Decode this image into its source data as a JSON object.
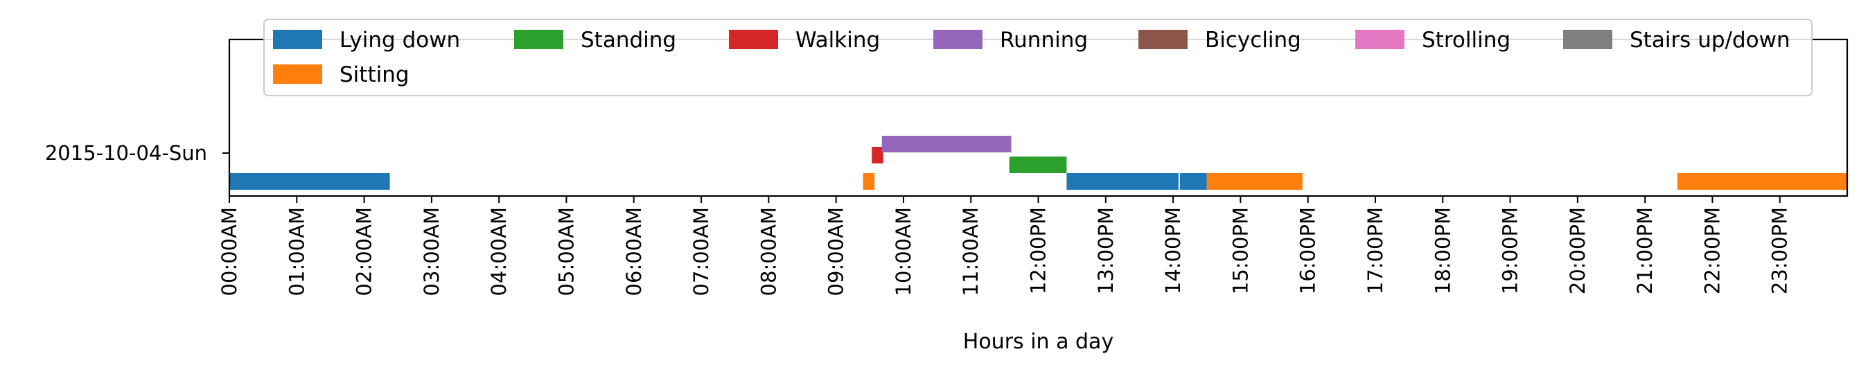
{
  "chart_data": {
    "type": "timeline",
    "xlabel": "Hours in a day",
    "xlim_hours": [
      0,
      24
    ],
    "x_tick_labels": [
      "00:00AM",
      "01:00AM",
      "02:00AM",
      "03:00AM",
      "04:00AM",
      "05:00AM",
      "06:00AM",
      "07:00AM",
      "08:00AM",
      "09:00AM",
      "10:00AM",
      "11:00AM",
      "12:00PM",
      "13:00PM",
      "14:00PM",
      "15:00PM",
      "16:00PM",
      "17:00PM",
      "18:00PM",
      "19:00PM",
      "20:00PM",
      "21:00PM",
      "22:00PM",
      "23:00PM"
    ],
    "y_tick_labels": [
      "2015-10-04-Sun"
    ],
    "legend_placement": "top",
    "legend": [
      {
        "label": "Lying down",
        "color": "#1f77b4"
      },
      {
        "label": "Standing",
        "color": "#2ca02c"
      },
      {
        "label": "Walking",
        "color": "#d62728"
      },
      {
        "label": "Running",
        "color": "#9467bd"
      },
      {
        "label": "Bicycling",
        "color": "#8c564b"
      },
      {
        "label": "Strolling",
        "color": "#e377c2"
      },
      {
        "label": "Stairs up/down",
        "color": "#7f7f7f"
      },
      {
        "label": "Sitting",
        "color": "#ff7f0e"
      }
    ],
    "series": [
      {
        "name": "Lying down",
        "color": "#1f77b4",
        "level": 0,
        "intervals": [
          [
            0.0,
            2.38
          ],
          [
            12.42,
            14.08
          ],
          [
            14.1,
            14.5
          ]
        ]
      },
      {
        "name": "Sitting",
        "color": "#ff7f0e",
        "level": 0,
        "intervals": [
          [
            9.4,
            9.57
          ],
          [
            14.5,
            15.92
          ],
          [
            21.48,
            24.0
          ]
        ]
      },
      {
        "name": "Standing",
        "color": "#2ca02c",
        "level": 1,
        "intervals": [
          [
            11.57,
            12.42
          ]
        ]
      },
      {
        "name": "Walking",
        "color": "#d62728",
        "level": 2,
        "intervals": [
          [
            9.53,
            9.7
          ]
        ]
      },
      {
        "name": "Running",
        "color": "#9467bd",
        "level": 3,
        "intervals": [
          [
            9.68,
            11.6
          ]
        ]
      }
    ]
  }
}
